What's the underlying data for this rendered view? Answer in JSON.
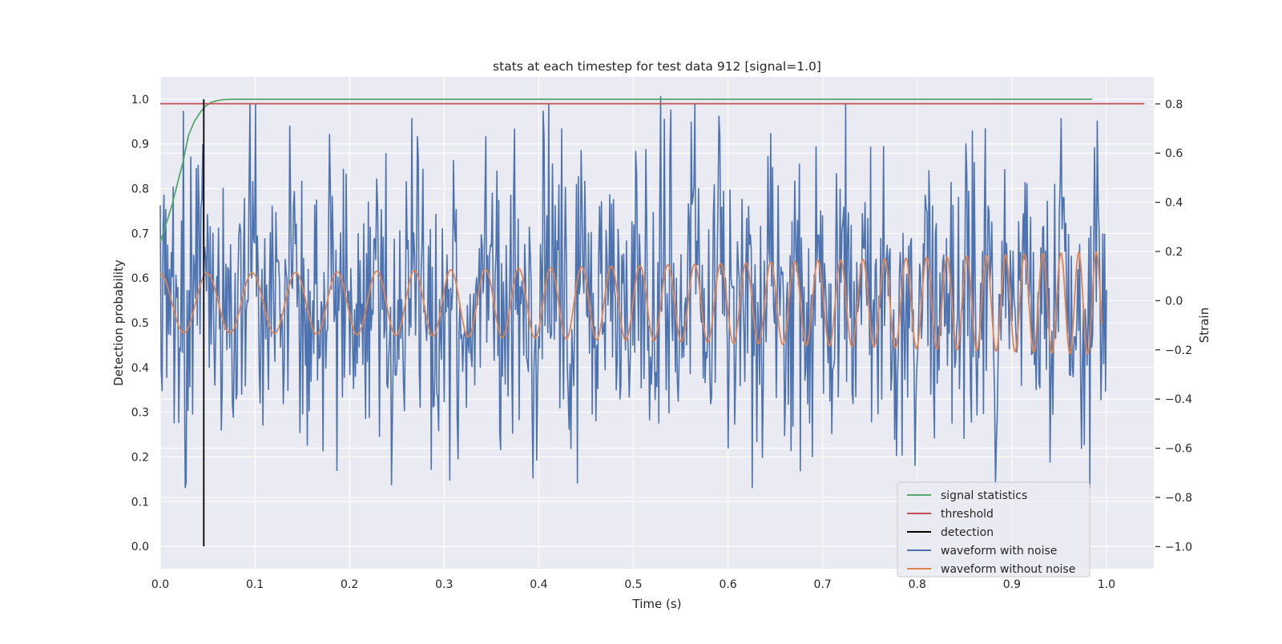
{
  "chart_data": {
    "type": "line",
    "title": "stats at each timestep for test data 912 [signal=1.0]",
    "xlabel": "Time (s)",
    "ylabel_left": "Detection probability",
    "ylabel_right": "Strain",
    "xlim": [
      0.0,
      1.05
    ],
    "ylim_left": [
      -0.05,
      1.05
    ],
    "ylim_right": [
      -1.09,
      0.91
    ],
    "x_ticks": [
      0.0,
      0.1,
      0.2,
      0.3,
      0.4,
      0.5,
      0.6,
      0.7,
      0.8,
      0.9,
      1.0
    ],
    "x_tick_labels": [
      "0.0",
      "0.1",
      "0.2",
      "0.3",
      "0.4",
      "0.5",
      "0.6",
      "0.7",
      "0.8",
      "0.9",
      "1.0"
    ],
    "y_left_ticks": [
      0.0,
      0.1,
      0.2,
      0.3,
      0.4,
      0.5,
      0.6,
      0.7,
      0.8,
      0.9,
      1.0
    ],
    "y_left_tick_labels": [
      "0.0",
      "0.1",
      "0.2",
      "0.3",
      "0.4",
      "0.5",
      "0.6",
      "0.7",
      "0.8",
      "0.9",
      "1.0"
    ],
    "y_right_ticks": [
      -1.0,
      -0.8,
      -0.6,
      -0.4,
      -0.2,
      0.0,
      0.2,
      0.4,
      0.6,
      0.8
    ],
    "y_right_tick_labels": [
      "−1.0",
      "−0.8",
      "−0.6",
      "−0.4",
      "−0.2",
      "0.0",
      "0.2",
      "0.4",
      "0.6",
      "0.8"
    ],
    "grid": true,
    "legend_position": "bottom-right",
    "series": [
      {
        "name": "signal statistics",
        "axis": "left",
        "color": "#55a868",
        "x": [
          0.0,
          0.012,
          0.024,
          0.03,
          0.036,
          0.042,
          0.048,
          0.054,
          0.06,
          0.066,
          0.075,
          0.09,
          0.12,
          0.2,
          0.4,
          0.6,
          0.8,
          0.985
        ],
        "y": [
          0.68,
          0.76,
          0.86,
          0.92,
          0.95,
          0.97,
          0.985,
          0.993,
          0.997,
          0.999,
          1.0,
          1.0,
          1.0,
          1.0,
          1.0,
          1.0,
          1.0,
          1.0
        ]
      },
      {
        "name": "threshold",
        "axis": "left",
        "color": "#c44e52",
        "x": [
          0.0,
          1.04
        ],
        "y": [
          0.99,
          0.99
        ]
      },
      {
        "name": "detection",
        "axis": "left",
        "color": "#000000",
        "x": [
          0.046,
          0.046
        ],
        "y": [
          0.0,
          1.0
        ]
      },
      {
        "name": "waveform with noise",
        "axis": "right",
        "color": "#4c72b0",
        "generated": "noisy strain ~1024 samples spanning 0 to 1 s, mostly within -0.75..0.8, one spike to 0.83 near t=0.53",
        "peaks": [
          {
            "x": 0.024,
            "y": 0.77
          },
          {
            "x": 0.027,
            "y": -0.74
          },
          {
            "x": 0.137,
            "y": 0.71
          },
          {
            "x": 0.187,
            "y": -0.69
          },
          {
            "x": 0.306,
            "y": -0.73
          },
          {
            "x": 0.405,
            "y": 0.77
          },
          {
            "x": 0.529,
            "y": 0.83
          },
          {
            "x": 0.858,
            "y": 0.69
          },
          {
            "x": 0.883,
            "y": -0.75
          }
        ]
      },
      {
        "name": "waveform without noise",
        "axis": "right",
        "color": "#dd8452",
        "generated": "chirp from about 20 Hz to 55 Hz over 0 to 0.995 s, amplitude growing from about 0.12 to 0.21"
      }
    ],
    "legend": [
      "signal statistics",
      "threshold",
      "detection",
      "waveform with noise",
      "waveform without noise"
    ]
  }
}
